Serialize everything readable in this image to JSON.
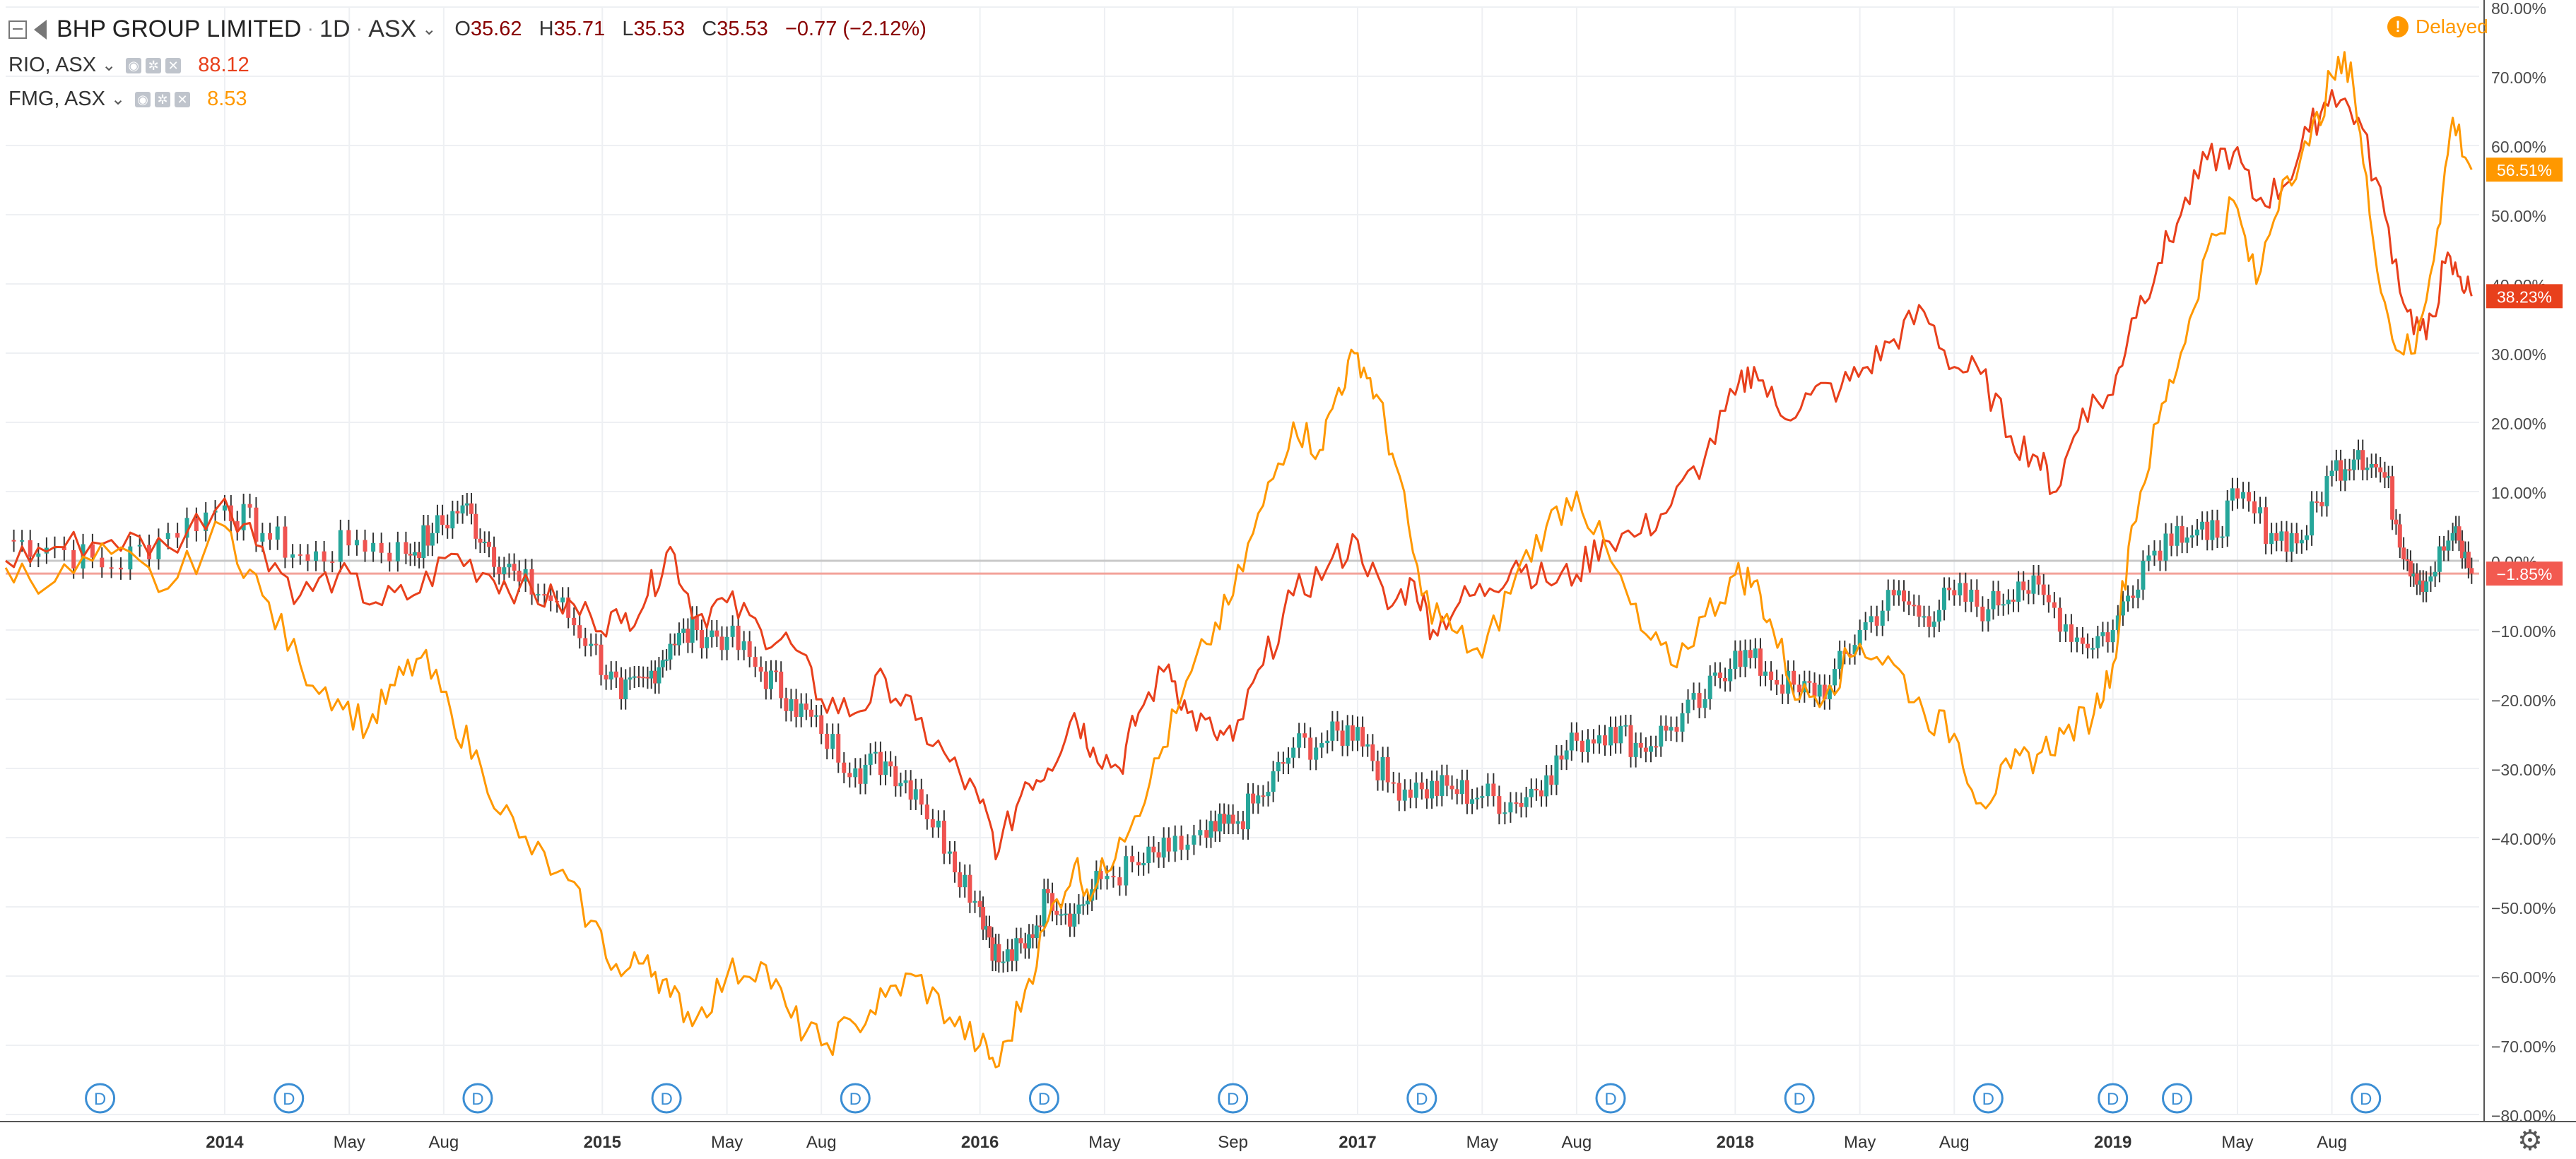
{
  "header": {
    "symbol_title": "BHP GROUP LIMITED",
    "interval": "1D",
    "exchange": "ASX",
    "ohlc": {
      "open_label": "O",
      "open": "35.62",
      "high_label": "H",
      "high": "35.71",
      "low_label": "L",
      "low": "35.53",
      "close_label": "C",
      "close": "35.53",
      "change": "−0.77 (−2.12%)"
    },
    "delayed_label": "Delayed",
    "delayed_icon": "exclamation-icon"
  },
  "legend": [
    {
      "symbol": "RIO, ASX",
      "value": "88.12",
      "color": "#e8401c"
    },
    {
      "symbol": "FMG, ASX",
      "value": "8.53",
      "color": "#ff9800"
    }
  ],
  "chart_data": {
    "type": "line",
    "x_axis_labels": [
      {
        "label": "2014",
        "t": 2014.0,
        "bold": true
      },
      {
        "label": "May",
        "t": 2014.33
      },
      {
        "label": "Aug",
        "t": 2014.58
      },
      {
        "label": "2015",
        "t": 2015.0,
        "bold": true
      },
      {
        "label": "May",
        "t": 2015.33
      },
      {
        "label": "Aug",
        "t": 2015.58
      },
      {
        "label": "2016",
        "t": 2016.0,
        "bold": true
      },
      {
        "label": "May",
        "t": 2016.33
      },
      {
        "label": "Sep",
        "t": 2016.67
      },
      {
        "label": "2017",
        "t": 2017.0,
        "bold": true
      },
      {
        "label": "May",
        "t": 2017.33
      },
      {
        "label": "Aug",
        "t": 2017.58
      },
      {
        "label": "2018",
        "t": 2018.0,
        "bold": true
      },
      {
        "label": "May",
        "t": 2018.33
      },
      {
        "label": "Aug",
        "t": 2018.58
      },
      {
        "label": "2019",
        "t": 2019.0,
        "bold": true
      },
      {
        "label": "May",
        "t": 2019.33
      },
      {
        "label": "Aug",
        "t": 2019.58
      }
    ],
    "y_axis_labels": [
      "80.00%",
      "70.00%",
      "60.00%",
      "50.00%",
      "40.00%",
      "30.00%",
      "20.00%",
      "10.00%",
      "0.00%",
      "−10.00%",
      "−20.00%",
      "−30.00%",
      "−40.00%",
      "−50.00%",
      "−60.00%",
      "−70.00%",
      "−80.00%"
    ],
    "y_axis_values": [
      80,
      70,
      60,
      50,
      40,
      30,
      20,
      10,
      0,
      -10,
      -20,
      -30,
      -40,
      -50,
      -60,
      -70,
      -80
    ],
    "ylim": [
      -80,
      80
    ],
    "grid": true,
    "dividend_marker_label": "D",
    "dividend_markers_t": [
      2013.67,
      2014.17,
      2014.67,
      2015.17,
      2015.67,
      2016.17,
      2016.67,
      2017.17,
      2017.67,
      2018.17,
      2018.67,
      2019.0,
      2019.17,
      2019.67
    ],
    "series": [
      {
        "key": "BHP",
        "style": "candles",
        "color": "#444444",
        "last_badge": "−1.85%",
        "badge_color": "#f25a50",
        "last_value": -1.85,
        "points": [
          [
            2013.42,
            3
          ],
          [
            2013.55,
            2
          ],
          [
            2013.7,
            -1
          ],
          [
            2013.85,
            4
          ],
          [
            2014.0,
            8
          ],
          [
            2014.1,
            4
          ],
          [
            2014.22,
            0
          ],
          [
            2014.35,
            3
          ],
          [
            2014.48,
            1
          ],
          [
            2014.55,
            4
          ],
          [
            2014.63,
            8
          ],
          [
            2014.7,
            2
          ],
          [
            2014.78,
            -3
          ],
          [
            2014.88,
            -6
          ],
          [
            2014.97,
            -12
          ],
          [
            2015.05,
            -20
          ],
          [
            2015.12,
            -17
          ],
          [
            2015.18,
            -12
          ],
          [
            2015.25,
            -10
          ],
          [
            2015.33,
            -11
          ],
          [
            2015.42,
            -16
          ],
          [
            2015.5,
            -20
          ],
          [
            2015.58,
            -25
          ],
          [
            2015.67,
            -30
          ],
          [
            2015.75,
            -29
          ],
          [
            2015.83,
            -33
          ],
          [
            2015.92,
            -42
          ],
          [
            2016.0,
            -50
          ],
          [
            2016.05,
            -58
          ],
          [
            2016.12,
            -56
          ],
          [
            2016.18,
            -48
          ],
          [
            2016.25,
            -51
          ],
          [
            2016.32,
            -46
          ],
          [
            2016.42,
            -44
          ],
          [
            2016.5,
            -42
          ],
          [
            2016.6,
            -40
          ],
          [
            2016.67,
            -38
          ],
          [
            2016.75,
            -34
          ],
          [
            2016.83,
            -27
          ],
          [
            2016.92,
            -26
          ],
          [
            2017.0,
            -24
          ],
          [
            2017.08,
            -32
          ],
          [
            2017.17,
            -33
          ],
          [
            2017.25,
            -33
          ],
          [
            2017.33,
            -34
          ],
          [
            2017.42,
            -35
          ],
          [
            2017.5,
            -31
          ],
          [
            2017.58,
            -26
          ],
          [
            2017.67,
            -24
          ],
          [
            2017.75,
            -27
          ],
          [
            2017.83,
            -24
          ],
          [
            2017.92,
            -20
          ],
          [
            2018.0,
            -13
          ],
          [
            2018.08,
            -16
          ],
          [
            2018.17,
            -19
          ],
          [
            2018.25,
            -18
          ],
          [
            2018.33,
            -10
          ],
          [
            2018.42,
            -5
          ],
          [
            2018.5,
            -8
          ],
          [
            2018.58,
            -5
          ],
          [
            2018.67,
            -7
          ],
          [
            2018.75,
            -3
          ],
          [
            2018.83,
            -6
          ],
          [
            2018.92,
            -12
          ],
          [
            2019.0,
            -10
          ],
          [
            2019.08,
            0
          ],
          [
            2019.17,
            5
          ],
          [
            2019.25,
            3
          ],
          [
            2019.33,
            9
          ],
          [
            2019.42,
            4
          ],
          [
            2019.5,
            3
          ],
          [
            2019.58,
            13
          ],
          [
            2019.65,
            16
          ],
          [
            2019.72,
            12
          ],
          [
            2019.78,
            0
          ],
          [
            2019.83,
            -3
          ],
          [
            2019.9,
            4
          ],
          [
            2019.95,
            -1.85
          ]
        ]
      },
      {
        "key": "RIO, ASX",
        "style": "line",
        "color": "#e8401c",
        "last_badge": "38.23%",
        "badge_color": "#e8401c",
        "last_value": 38.23,
        "points": [
          [
            2013.42,
            0
          ],
          [
            2013.55,
            2
          ],
          [
            2013.7,
            3
          ],
          [
            2013.85,
            2
          ],
          [
            2014.0,
            9
          ],
          [
            2014.1,
            2
          ],
          [
            2014.2,
            -5
          ],
          [
            2014.3,
            -2
          ],
          [
            2014.4,
            -6
          ],
          [
            2014.5,
            -5
          ],
          [
            2014.6,
            1
          ],
          [
            2014.7,
            -2
          ],
          [
            2014.78,
            -4
          ],
          [
            2014.88,
            -6
          ],
          [
            2014.97,
            -8
          ],
          [
            2015.05,
            -9
          ],
          [
            2015.12,
            -5
          ],
          [
            2015.18,
            2
          ],
          [
            2015.25,
            -8
          ],
          [
            2015.33,
            -6
          ],
          [
            2015.42,
            -10
          ],
          [
            2015.5,
            -12
          ],
          [
            2015.58,
            -20
          ],
          [
            2015.67,
            -22
          ],
          [
            2015.75,
            -17
          ],
          [
            2015.83,
            -23
          ],
          [
            2015.92,
            -29
          ],
          [
            2016.0,
            -35
          ],
          [
            2016.05,
            -42
          ],
          [
            2016.12,
            -32
          ],
          [
            2016.18,
            -30
          ],
          [
            2016.25,
            -22
          ],
          [
            2016.3,
            -27
          ],
          [
            2016.37,
            -30
          ],
          [
            2016.42,
            -22
          ],
          [
            2016.5,
            -15
          ],
          [
            2016.55,
            -22
          ],
          [
            2016.62,
            -25
          ],
          [
            2016.67,
            -26
          ],
          [
            2016.75,
            -15
          ],
          [
            2016.83,
            -5
          ],
          [
            2016.92,
            -1
          ],
          [
            2017.0,
            3
          ],
          [
            2017.08,
            -7
          ],
          [
            2017.15,
            -3
          ],
          [
            2017.2,
            -10
          ],
          [
            2017.27,
            -6
          ],
          [
            2017.35,
            -4
          ],
          [
            2017.42,
            0
          ],
          [
            2017.5,
            -3
          ],
          [
            2017.58,
            -2
          ],
          [
            2017.65,
            3
          ],
          [
            2017.75,
            4
          ],
          [
            2017.83,
            8
          ],
          [
            2017.92,
            15
          ],
          [
            2018.0,
            24
          ],
          [
            2018.05,
            28
          ],
          [
            2018.12,
            21
          ],
          [
            2018.2,
            24
          ],
          [
            2018.28,
            25
          ],
          [
            2018.35,
            28
          ],
          [
            2018.42,
            32
          ],
          [
            2018.5,
            36
          ],
          [
            2018.58,
            28
          ],
          [
            2018.65,
            27
          ],
          [
            2018.73,
            18
          ],
          [
            2018.8,
            15
          ],
          [
            2018.85,
            10
          ],
          [
            2018.92,
            22
          ],
          [
            2019.0,
            24
          ],
          [
            2019.05,
            35
          ],
          [
            2019.12,
            43
          ],
          [
            2019.18,
            50
          ],
          [
            2019.25,
            58
          ],
          [
            2019.32,
            59
          ],
          [
            2019.38,
            52
          ],
          [
            2019.45,
            54
          ],
          [
            2019.52,
            62
          ],
          [
            2019.58,
            68
          ],
          [
            2019.65,
            64
          ],
          [
            2019.72,
            50
          ],
          [
            2019.78,
            36
          ],
          [
            2019.83,
            32
          ],
          [
            2019.88,
            43
          ],
          [
            2019.92,
            41
          ],
          [
            2019.95,
            38.23
          ]
        ]
      },
      {
        "key": "FMG, ASX",
        "style": "line",
        "color": "#ff9800",
        "last_badge": "56.51%",
        "badge_color": "#ff9800",
        "last_value": 56.51,
        "points": [
          [
            2013.42,
            -1
          ],
          [
            2013.55,
            -3
          ],
          [
            2013.7,
            1
          ],
          [
            2013.85,
            -4
          ],
          [
            2014.0,
            5
          ],
          [
            2014.1,
            -5
          ],
          [
            2014.2,
            -15
          ],
          [
            2014.3,
            -20
          ],
          [
            2014.38,
            -24
          ],
          [
            2014.45,
            -18
          ],
          [
            2014.52,
            -14
          ],
          [
            2014.6,
            -22
          ],
          [
            2014.68,
            -30
          ],
          [
            2014.78,
            -40
          ],
          [
            2014.88,
            -45
          ],
          [
            2014.97,
            -52
          ],
          [
            2015.05,
            -60
          ],
          [
            2015.12,
            -57
          ],
          [
            2015.18,
            -63
          ],
          [
            2015.25,
            -66
          ],
          [
            2015.33,
            -60
          ],
          [
            2015.42,
            -58
          ],
          [
            2015.5,
            -66
          ],
          [
            2015.58,
            -70
          ],
          [
            2015.67,
            -67
          ],
          [
            2015.75,
            -63
          ],
          [
            2015.83,
            -60
          ],
          [
            2015.92,
            -66
          ],
          [
            2016.0,
            -70
          ],
          [
            2016.05,
            -73
          ],
          [
            2016.12,
            -62
          ],
          [
            2016.18,
            -52
          ],
          [
            2016.25,
            -44
          ],
          [
            2016.3,
            -48
          ],
          [
            2016.37,
            -40
          ],
          [
            2016.45,
            -32
          ],
          [
            2016.52,
            -22
          ],
          [
            2016.6,
            -12
          ],
          [
            2016.67,
            -5
          ],
          [
            2016.75,
            8
          ],
          [
            2016.83,
            20
          ],
          [
            2016.9,
            16
          ],
          [
            2016.95,
            25
          ],
          [
            2017.0,
            30
          ],
          [
            2017.05,
            24
          ],
          [
            2017.1,
            14
          ],
          [
            2017.17,
            -5
          ],
          [
            2017.25,
            -10
          ],
          [
            2017.33,
            -14
          ],
          [
            2017.42,
            -2
          ],
          [
            2017.5,
            5
          ],
          [
            2017.58,
            10
          ],
          [
            2017.67,
            0
          ],
          [
            2017.75,
            -10
          ],
          [
            2017.83,
            -15
          ],
          [
            2017.92,
            -8
          ],
          [
            2018.0,
            -2
          ],
          [
            2018.05,
            -3
          ],
          [
            2018.1,
            -10
          ],
          [
            2018.17,
            -20
          ],
          [
            2018.25,
            -18
          ],
          [
            2018.33,
            -12
          ],
          [
            2018.42,
            -15
          ],
          [
            2018.5,
            -22
          ],
          [
            2018.58,
            -25
          ],
          [
            2018.65,
            -35
          ],
          [
            2018.73,
            -30
          ],
          [
            2018.8,
            -28
          ],
          [
            2018.87,
            -25
          ],
          [
            2018.95,
            -22
          ],
          [
            2019.0,
            -15
          ],
          [
            2019.05,
            5
          ],
          [
            2019.12,
            20
          ],
          [
            2019.18,
            30
          ],
          [
            2019.25,
            45
          ],
          [
            2019.32,
            52
          ],
          [
            2019.38,
            40
          ],
          [
            2019.45,
            55
          ],
          [
            2019.52,
            60
          ],
          [
            2019.58,
            70
          ],
          [
            2019.63,
            72
          ],
          [
            2019.68,
            50
          ],
          [
            2019.74,
            32
          ],
          [
            2019.8,
            30
          ],
          [
            2019.86,
            48
          ],
          [
            2019.9,
            64
          ],
          [
            2019.95,
            56.51
          ]
        ]
      }
    ],
    "reference_lines": [
      {
        "value": 0,
        "color": "#c8c8c8"
      },
      {
        "value": -1.85,
        "color": "#f3a39a"
      }
    ]
  }
}
